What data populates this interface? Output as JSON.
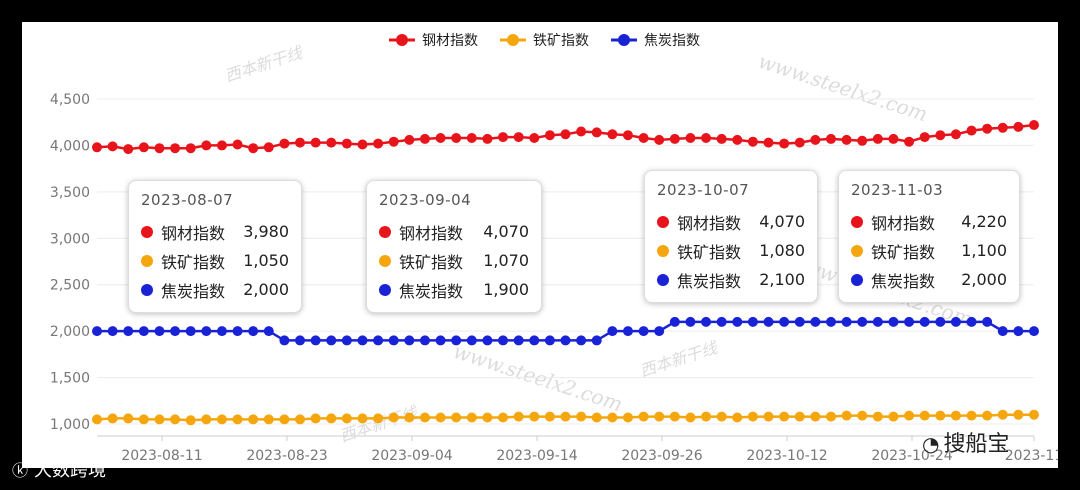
{
  "chart_data": {
    "type": "line",
    "legend_position": "top-center",
    "grid": true,
    "ylim": [
      900,
      4600
    ],
    "y_ticks": [
      "1,000",
      "1,500",
      "2,000",
      "2,500",
      "3,000",
      "3,500",
      "4,000",
      "4,500"
    ],
    "x_ticks": [
      "2023-08-11",
      "2023-08-23",
      "2023-09-04",
      "2023-09-14",
      "2023-09-26",
      "2023-10-12",
      "2023-10-24",
      "2023-11"
    ],
    "series": [
      {
        "name": "钢材指数",
        "color": "#e8141b",
        "values": [
          3980,
          3990,
          3960,
          3980,
          3970,
          3970,
          3970,
          4000,
          4000,
          4010,
          3970,
          3980,
          4020,
          4030,
          4030,
          4030,
          4020,
          4010,
          4020,
          4040,
          4060,
          4070,
          4080,
          4080,
          4080,
          4070,
          4090,
          4090,
          4080,
          4110,
          4120,
          4150,
          4140,
          4120,
          4110,
          4080,
          4060,
          4070,
          4080,
          4080,
          4070,
          4060,
          4040,
          4030,
          4020,
          4030,
          4060,
          4070,
          4060,
          4050,
          4070,
          4070,
          4040,
          4090,
          4110,
          4120,
          4160,
          4180,
          4190,
          4200,
          4220
        ]
      },
      {
        "name": "铁矿指数",
        "color": "#f5a60c",
        "values": [
          1050,
          1060,
          1060,
          1050,
          1050,
          1050,
          1040,
          1050,
          1050,
          1050,
          1050,
          1050,
          1050,
          1050,
          1060,
          1060,
          1060,
          1060,
          1060,
          1070,
          1070,
          1070,
          1070,
          1070,
          1070,
          1070,
          1070,
          1080,
          1080,
          1080,
          1080,
          1080,
          1070,
          1070,
          1070,
          1080,
          1080,
          1080,
          1070,
          1080,
          1080,
          1070,
          1080,
          1080,
          1080,
          1080,
          1080,
          1080,
          1090,
          1090,
          1080,
          1080,
          1090,
          1090,
          1090,
          1090,
          1090,
          1090,
          1100,
          1100,
          1100
        ]
      },
      {
        "name": "焦炭指数",
        "color": "#1a22d6",
        "values": [
          2000,
          2000,
          2000,
          2000,
          2000,
          2000,
          2000,
          2000,
          2000,
          2000,
          2000,
          2000,
          1900,
          1900,
          1900,
          1900,
          1900,
          1900,
          1900,
          1900,
          1900,
          1900,
          1900,
          1900,
          1900,
          1900,
          1900,
          1900,
          1900,
          1900,
          1900,
          1900,
          1900,
          2000,
          2000,
          2000,
          2000,
          2100,
          2100,
          2100,
          2100,
          2100,
          2100,
          2100,
          2100,
          2100,
          2100,
          2100,
          2100,
          2100,
          2100,
          2100,
          2100,
          2100,
          2100,
          2100,
          2100,
          2100,
          2000,
          2000,
          2000
        ]
      }
    ],
    "tooltips": [
      {
        "date": "2023-08-07",
        "rows": [
          {
            "name": "钢材指数",
            "value": "3,980"
          },
          {
            "name": "铁矿指数",
            "value": "1,050"
          },
          {
            "name": "焦炭指数",
            "value": "2,000"
          }
        ]
      },
      {
        "date": "2023-09-04",
        "rows": [
          {
            "name": "钢材指数",
            "value": "4,070"
          },
          {
            "name": "铁矿指数",
            "value": "1,070"
          },
          {
            "name": "焦炭指数",
            "value": "1,900"
          }
        ]
      },
      {
        "date": "2023-10-07",
        "rows": [
          {
            "name": "钢材指数",
            "value": "4,070"
          },
          {
            "name": "铁矿指数",
            "value": "1,080"
          },
          {
            "name": "焦炭指数",
            "value": "2,100"
          }
        ]
      },
      {
        "date": "2023-11-03",
        "rows": [
          {
            "name": "钢材指数",
            "value": "4,220"
          },
          {
            "name": "铁矿指数",
            "value": "1,100"
          },
          {
            "name": "焦炭指数",
            "value": "2,000"
          }
        ]
      }
    ]
  },
  "watermarks": [
    "西本新干线",
    "www.steelx2.com"
  ],
  "branding": {
    "bottom_left": "大数跨境",
    "bottom_right": "搜船宝"
  }
}
